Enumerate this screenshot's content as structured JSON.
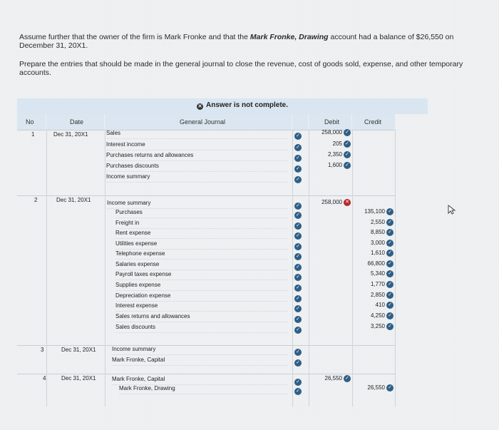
{
  "prompt": {
    "line1_prefix": "Assume further that the owner of the firm is Mark Fronke and that the ",
    "line1_emph": "Mark Fronke, Drawing",
    "line1_suffix": " account had a balance of $26,550 on",
    "line2": "December 31, 20X1.",
    "line3": "Prepare the entries that should be made in the general journal to close the revenue, cost of goods sold, expense, and other temporary",
    "line4": "accounts."
  },
  "banner": {
    "status": "Answer is not complete."
  },
  "table": {
    "title": "General Journal",
    "headers": {
      "no": "No",
      "date": "Date",
      "debit": "Debit",
      "credit": "Credit"
    },
    "entries": [
      {
        "no": "1",
        "date": "Dec 31, 20X1",
        "lines": [
          {
            "account": "Sales",
            "debit": "258,000",
            "debit_status": "correct",
            "credit": ""
          },
          {
            "account": "Interest income",
            "debit": "205",
            "debit_status": "correct",
            "credit": ""
          },
          {
            "account": "Purchases returns and allowances",
            "debit": "2,350",
            "debit_status": "correct",
            "credit": ""
          },
          {
            "account": "Purchases discounts",
            "debit": "1,600",
            "debit_status": "correct",
            "credit": ""
          },
          {
            "account": "Income summary",
            "debit": "",
            "credit": ""
          }
        ]
      },
      {
        "no": "2",
        "date": "Dec 31, 20X1",
        "lines": [
          {
            "account": "Income summary",
            "debit": "258,000",
            "debit_status": "incorrect",
            "credit": ""
          },
          {
            "account": "Purchases",
            "debit": "",
            "credit": "135,100",
            "credit_status": "correct"
          },
          {
            "account": "Freight in",
            "debit": "",
            "credit": "2,550",
            "credit_status": "correct"
          },
          {
            "account": "Rent expense",
            "debit": "",
            "credit": "8,850",
            "credit_status": "correct"
          },
          {
            "account": "Utilities expense",
            "debit": "",
            "credit": "3,000",
            "credit_status": "correct"
          },
          {
            "account": "Telephone expense",
            "debit": "",
            "credit": "1,610",
            "credit_status": "correct"
          },
          {
            "account": "Salaries expense",
            "debit": "",
            "credit": "66,800",
            "credit_status": "correct"
          },
          {
            "account": "Payroll taxes expense",
            "debit": "",
            "credit": "5,340",
            "credit_status": "correct"
          },
          {
            "account": "Supplies expense",
            "debit": "",
            "credit": "1,770",
            "credit_status": "correct"
          },
          {
            "account": "Depreciation expense",
            "debit": "",
            "credit": "2,850",
            "credit_status": "correct"
          },
          {
            "account": "Interest expense",
            "debit": "",
            "credit": "410",
            "credit_status": "correct"
          },
          {
            "account": "Sales returns and allowances",
            "debit": "",
            "credit": "4,250",
            "credit_status": "correct"
          },
          {
            "account": "Sales discounts",
            "debit": "",
            "credit": "3,250",
            "credit_status": "correct"
          }
        ]
      },
      {
        "no": "3",
        "date": "Dec 31, 20X1",
        "lines": [
          {
            "account": "Income summary",
            "debit": "",
            "credit": ""
          },
          {
            "account": "Mark Fronke, Capital",
            "debit": "",
            "credit": ""
          }
        ]
      },
      {
        "no": "4",
        "date": "Dec 31, 20X1",
        "lines": [
          {
            "account": "Mark Fronke, Capital",
            "debit": "26,550",
            "debit_status": "correct",
            "credit": ""
          },
          {
            "account": "Mark Fronke, Drawing",
            "debit": "",
            "credit": "26,550",
            "credit_status": "correct"
          }
        ]
      }
    ]
  },
  "colors": {
    "correct": "#2f5e86",
    "incorrect": "#b8262c",
    "header": "#dbe6f0"
  },
  "icons": {
    "correct": "check-circle-icon",
    "incorrect": "x-circle-icon",
    "cursor": "mouse-pointer-icon"
  }
}
